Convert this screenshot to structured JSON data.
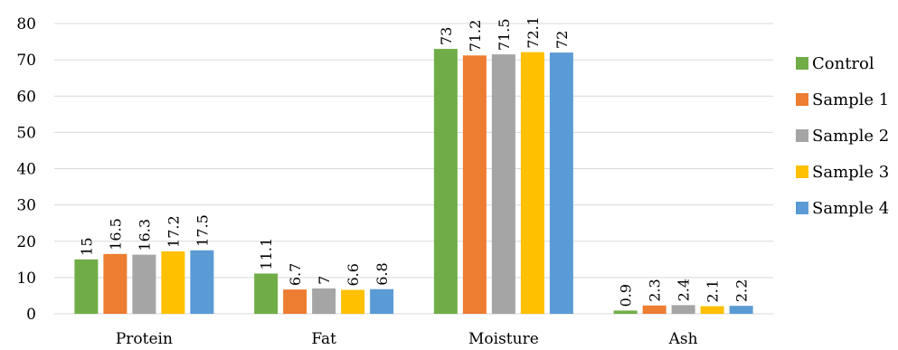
{
  "chart_data": {
    "type": "bar",
    "title": "",
    "xlabel": "",
    "ylabel": "",
    "categories": [
      "Protein",
      "Fat",
      "Moisture",
      "Ash"
    ],
    "ylim": [
      0,
      80
    ],
    "yticks": [
      0,
      10,
      20,
      30,
      40,
      50,
      60,
      70,
      80
    ],
    "grid": true,
    "legend_position": "right",
    "data_labels": true,
    "series": [
      {
        "name": "Control",
        "color": "#70ad47",
        "values": [
          15,
          11.1,
          73,
          0.9
        ]
      },
      {
        "name": "Sample 1",
        "color": "#ed7d31",
        "values": [
          16.5,
          6.7,
          71.2,
          2.3
        ]
      },
      {
        "name": "Sample 2",
        "color": "#a5a5a5",
        "values": [
          16.3,
          7,
          71.5,
          2.4
        ]
      },
      {
        "name": "Sample 3",
        "color": "#ffc000",
        "values": [
          17.2,
          6.6,
          72.1,
          2.1
        ]
      },
      {
        "name": "Sample 4",
        "color": "#5b9bd5",
        "values": [
          17.5,
          6.8,
          72,
          2.2
        ]
      }
    ]
  }
}
